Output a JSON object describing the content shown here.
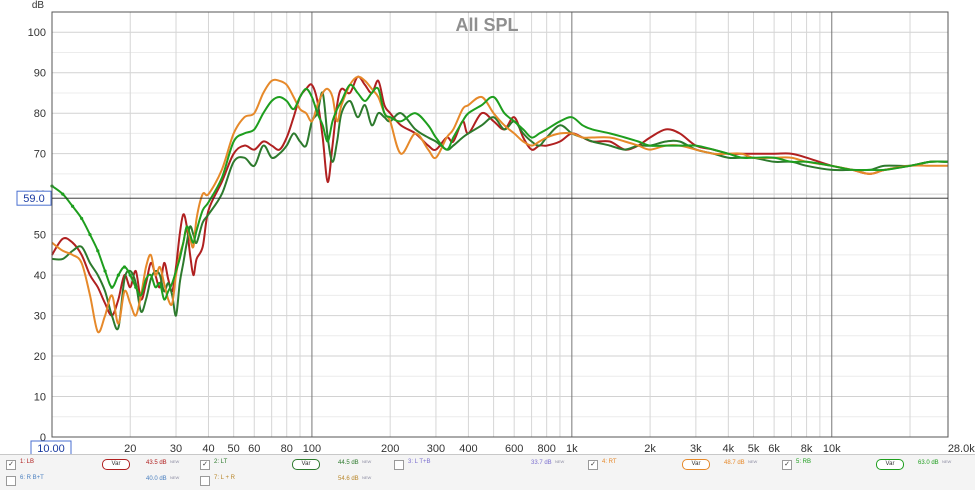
{
  "chart_data": {
    "type": "line",
    "title": "All SPL",
    "ylabel": "dB",
    "xlabel_unit": "kHz",
    "x_scale": "log",
    "xlim": [
      10,
      28000
    ],
    "ylim": [
      0,
      105
    ],
    "grid": true,
    "cursor": {
      "y": 59.0,
      "y_label": "59.0",
      "x_label": "10.00"
    },
    "y_ticks": [
      0,
      10,
      20,
      30,
      40,
      50,
      60,
      70,
      80,
      90,
      100
    ],
    "x_ticks": [
      {
        "v": 10,
        "l": ""
      },
      {
        "v": 20,
        "l": "20"
      },
      {
        "v": 30,
        "l": "30"
      },
      {
        "v": 40,
        "l": "40"
      },
      {
        "v": 50,
        "l": "50"
      },
      {
        "v": 60,
        "l": "60"
      },
      {
        "v": 80,
        "l": "80"
      },
      {
        "v": 100,
        "l": "100"
      },
      {
        "v": 200,
        "l": "200"
      },
      {
        "v": 300,
        "l": "300"
      },
      {
        "v": 400,
        "l": "400"
      },
      {
        "v": 600,
        "l": "600"
      },
      {
        "v": 800,
        "l": "800"
      },
      {
        "v": 1000,
        "l": "1k"
      },
      {
        "v": 2000,
        "l": "2k"
      },
      {
        "v": 3000,
        "l": "3k"
      },
      {
        "v": 4000,
        "l": "4k"
      },
      {
        "v": 5000,
        "l": "5k"
      },
      {
        "v": 6000,
        "l": "6k"
      },
      {
        "v": 8000,
        "l": "8k"
      },
      {
        "v": 10000,
        "l": "10k"
      },
      {
        "v": 28000,
        "l": "28.0kHz"
      }
    ],
    "series": [
      {
        "name": "1: LB",
        "color": "#b02020",
        "x": [
          10,
          11,
          12,
          13,
          14,
          15,
          16,
          17,
          18,
          19,
          20,
          21,
          22,
          23,
          24,
          25,
          26,
          27,
          28,
          29,
          30,
          31,
          32,
          33,
          34,
          35,
          36,
          38,
          40,
          45,
          50,
          55,
          60,
          65,
          70,
          75,
          80,
          85,
          90,
          95,
          100,
          105,
          110,
          115,
          120,
          125,
          130,
          140,
          150,
          160,
          170,
          180,
          190,
          200,
          220,
          250,
          280,
          300,
          330,
          350,
          380,
          400,
          450,
          500,
          550,
          600,
          650,
          700,
          750,
          800,
          900,
          1000,
          1100,
          1200,
          1400,
          1600,
          1800,
          2000,
          2300,
          2600,
          3000,
          3500,
          4000,
          4500,
          5000,
          6000,
          7000,
          8000,
          10000,
          12000,
          14000,
          16000,
          20000,
          24000,
          28000
        ],
        "y": [
          45,
          49,
          48,
          45,
          40,
          37,
          33,
          30,
          34,
          40,
          37,
          41,
          34,
          38,
          43,
          40,
          37,
          43,
          39,
          36,
          42,
          50,
          55,
          52,
          45,
          40,
          44,
          47,
          56,
          63,
          70,
          72,
          71,
          73,
          72,
          71,
          74,
          79,
          84,
          86,
          87,
          83,
          74,
          63,
          72,
          82,
          86,
          85,
          89,
          87,
          85,
          88,
          82,
          80,
          77,
          75,
          72,
          71,
          74,
          73,
          78,
          75,
          80,
          78,
          76,
          79,
          74,
          71,
          72,
          72,
          73,
          75,
          74,
          73,
          73,
          71,
          72,
          74,
          76,
          75,
          72,
          71,
          70,
          70,
          70,
          70,
          70,
          69,
          67,
          66,
          65,
          66,
          67,
          68,
          68
        ]
      },
      {
        "name": "2: LT",
        "color": "#2d7a2d",
        "x": [
          10,
          11,
          12,
          13,
          14,
          15,
          16,
          17,
          18,
          19,
          20,
          21,
          22,
          23,
          24,
          25,
          26,
          27,
          28,
          29,
          30,
          31,
          32,
          33,
          34,
          35,
          36,
          38,
          40,
          45,
          50,
          55,
          60,
          65,
          70,
          75,
          80,
          85,
          90,
          95,
          100,
          105,
          110,
          115,
          120,
          125,
          130,
          140,
          150,
          160,
          170,
          180,
          190,
          200,
          220,
          250,
          280,
          300,
          330,
          350,
          380,
          400,
          450,
          500,
          550,
          600,
          650,
          700,
          750,
          800,
          900,
          1000,
          1100,
          1200,
          1400,
          1600,
          1800,
          2000,
          2300,
          2600,
          3000,
          3500,
          4000,
          4500,
          5000,
          6000,
          7000,
          8000,
          10000,
          12000,
          14000,
          16000,
          20000,
          24000,
          28000
        ],
        "y": [
          44,
          44,
          46,
          47,
          43,
          40,
          36,
          30,
          27,
          39,
          41,
          38,
          31,
          34,
          39,
          41,
          40,
          36,
          38,
          35,
          30,
          38,
          43,
          48,
          52,
          50,
          48,
          53,
          55,
          60,
          68,
          69,
          67,
          72,
          69,
          70,
          72,
          75,
          73,
          72,
          78,
          80,
          85,
          74,
          68,
          73,
          80,
          83,
          79,
          82,
          77,
          80,
          79,
          78,
          80,
          76,
          74,
          73,
          71,
          72,
          74,
          75,
          77,
          79,
          76,
          78,
          75,
          73,
          72,
          74,
          77,
          75,
          74,
          73,
          72,
          71,
          72,
          72,
          73,
          73,
          71,
          70,
          69,
          69,
          69,
          68,
          68,
          67,
          66,
          66,
          66,
          67,
          67,
          68,
          68
        ]
      },
      {
        "name": "4: RT",
        "color": "#e6892a",
        "x": [
          10,
          11,
          12,
          13,
          14,
          15,
          16,
          17,
          18,
          19,
          20,
          21,
          22,
          23,
          24,
          25,
          26,
          27,
          28,
          29,
          30,
          31,
          32,
          33,
          34,
          35,
          36,
          38,
          40,
          45,
          50,
          55,
          60,
          65,
          70,
          75,
          80,
          85,
          90,
          95,
          100,
          105,
          110,
          115,
          120,
          125,
          130,
          140,
          150,
          160,
          170,
          180,
          190,
          200,
          220,
          250,
          280,
          300,
          330,
          350,
          380,
          400,
          450,
          500,
          550,
          600,
          650,
          700,
          750,
          800,
          900,
          1000,
          1100,
          1200,
          1400,
          1600,
          1800,
          2000,
          2300,
          2600,
          3000,
          3500,
          4000,
          4500,
          5000,
          6000,
          7000,
          8000,
          10000,
          12000,
          14000,
          16000,
          20000,
          24000,
          28000
        ],
        "y": [
          48,
          46,
          45,
          43,
          35,
          26,
          30,
          35,
          28,
          36,
          33,
          30,
          35,
          42,
          45,
          40,
          42,
          38,
          34,
          33,
          40,
          45,
          48,
          52,
          49,
          47,
          54,
          60,
          60,
          66,
          75,
          79,
          80,
          85,
          88,
          88,
          87,
          84,
          81,
          80,
          78,
          82,
          85,
          86,
          84,
          78,
          82,
          87,
          89,
          88,
          86,
          84,
          80,
          78,
          70,
          75,
          71,
          69,
          74,
          76,
          81,
          82,
          84,
          80,
          77,
          75,
          73,
          72,
          73,
          74,
          75,
          75,
          74,
          74,
          74,
          73,
          72,
          71,
          72,
          72,
          71,
          70,
          70,
          70,
          69,
          69,
          69,
          68,
          67,
          66,
          65,
          66,
          67,
          67,
          67
        ]
      },
      {
        "name": "5: RB",
        "color": "#1e9e1e",
        "x": [
          10,
          11,
          12,
          13,
          14,
          15,
          16,
          17,
          18,
          19,
          20,
          21,
          22,
          23,
          24,
          25,
          26,
          27,
          28,
          29,
          30,
          31,
          32,
          33,
          34,
          35,
          36,
          38,
          40,
          45,
          50,
          55,
          60,
          65,
          70,
          75,
          80,
          85,
          90,
          95,
          100,
          105,
          110,
          115,
          120,
          125,
          130,
          140,
          150,
          160,
          170,
          180,
          190,
          200,
          220,
          250,
          280,
          300,
          330,
          350,
          380,
          400,
          450,
          500,
          550,
          600,
          650,
          700,
          750,
          800,
          900,
          1000,
          1100,
          1200,
          1400,
          1600,
          1800,
          2000,
          2300,
          2600,
          3000,
          3500,
          4000,
          4500,
          5000,
          6000,
          7000,
          8000,
          10000,
          12000,
          14000,
          16000,
          20000,
          24000,
          28000
        ],
        "y": [
          62,
          60,
          57,
          54,
          50,
          46,
          41,
          37,
          40,
          42,
          40,
          37,
          35,
          39,
          40,
          37,
          38,
          34,
          36,
          38,
          41,
          44,
          48,
          52,
          50,
          48,
          51,
          56,
          58,
          64,
          73,
          75,
          76,
          80,
          83,
          84,
          83,
          81,
          84,
          86,
          84,
          80,
          77,
          73,
          78,
          81,
          83,
          87,
          85,
          83,
          85,
          86,
          80,
          79,
          78,
          80,
          77,
          74,
          71,
          74,
          78,
          80,
          82,
          84,
          80,
          78,
          76,
          74,
          75,
          76,
          78,
          79,
          77,
          76,
          75,
          74,
          73,
          72,
          72,
          72,
          72,
          71,
          70,
          69,
          69,
          69,
          68,
          68,
          67,
          66,
          66,
          66,
          67,
          68,
          68
        ]
      }
    ],
    "legend": [
      {
        "check": "✓",
        "name": "1: LB",
        "color": "#b02020",
        "value": "43.5 dB",
        "tag": "NEW",
        "show_var": true
      },
      {
        "check": "✓",
        "name": "2: LT",
        "color": "#2d7a2d",
        "value": "44.5 dB",
        "tag": "NEW",
        "show_var": true
      },
      {
        "check": "",
        "name": "3: L T+B",
        "color": "#7b6fcf",
        "value": "33.7 dB",
        "tag": "NEW",
        "show_var": false
      },
      {
        "check": "✓",
        "name": "4: RT",
        "color": "#e6892a",
        "value": "48.7 dB",
        "tag": "NEW",
        "show_var": true
      },
      {
        "check": "✓",
        "name": "5: RB",
        "color": "#1e9e1e",
        "value": "63.0 dB",
        "tag": "NEW",
        "show_var": true
      },
      {
        "check": "",
        "name": "6: R B+T",
        "color": "#4a7fbf",
        "value": "40.0 dB",
        "tag": "NEW",
        "show_var": false
      },
      {
        "check": "",
        "name": "7: L + R",
        "color": "#b8862a",
        "value": "54.6 dB",
        "tag": "NEW",
        "show_var": false
      }
    ],
    "var_label": "Var"
  }
}
